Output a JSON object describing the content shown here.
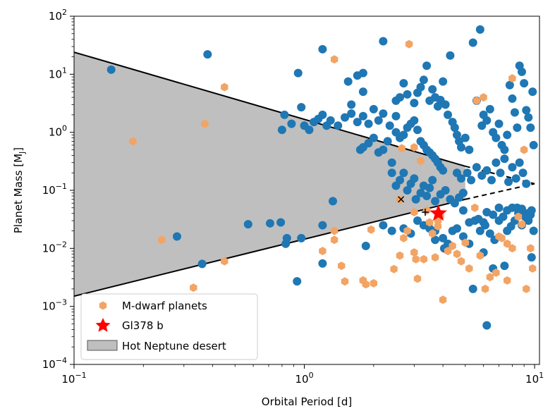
{
  "chart_data": {
    "type": "scatter",
    "xlabel": "Orbital Period [d]",
    "ylabel": "Planet Mass [M",
    "ylabel_sub": "J",
    "ylabel_end": "]",
    "x_scale": "log",
    "y_scale": "log",
    "xlim": [
      0.1,
      10.5
    ],
    "ylim": [
      0.0001,
      100
    ],
    "x_ticks": [
      {
        "value": 0.1,
        "base": "10",
        "exp": "−1"
      },
      {
        "value": 1,
        "base": "10",
        "exp": "0"
      },
      {
        "value": 10,
        "base": "10",
        "exp": "1"
      }
    ],
    "y_ticks": [
      {
        "value": 0.0001,
        "base": "10",
        "exp": "−4"
      },
      {
        "value": 0.001,
        "base": "10",
        "exp": "−3"
      },
      {
        "value": 0.01,
        "base": "10",
        "exp": "−2"
      },
      {
        "value": 0.1,
        "base": "10",
        "exp": "−1"
      },
      {
        "value": 1,
        "base": "10",
        "exp": "0"
      },
      {
        "value": 10,
        "base": "10",
        "exp": "1"
      },
      {
        "value": 100,
        "base": "10",
        "exp": "2"
      }
    ],
    "grid": false,
    "legend_position": "lower-left",
    "colors": {
      "all_planets": "#1f77b4",
      "m_dwarf": "#f2a465",
      "star_marker": "#ff0000",
      "desert_fill": "#bfbfbf",
      "desert_edge": "#000000"
    },
    "legend": [
      {
        "label": "M-dwarf planets",
        "marker": "hexagon",
        "color": "#f2a465"
      },
      {
        "label": "Gl378 b",
        "marker": "star",
        "color": "#ff0000"
      },
      {
        "label": "Hot Neptune desert",
        "marker": "patch",
        "color": "#bfbfbf"
      }
    ],
    "desert": {
      "upper_solid": [
        [
          0.1,
          24
        ],
        [
          5.0,
          0.26
        ]
      ],
      "upper_dashed": [
        [
          5.0,
          0.26
        ],
        [
          10,
          0.13
        ]
      ],
      "lower_solid": [
        [
          0.1,
          0.0015
        ],
        [
          5.0,
          0.07
        ]
      ],
      "lower_dashed": [
        [
          5.0,
          0.07
        ],
        [
          10,
          0.13
        ]
      ]
    },
    "highlight": {
      "name": "Gl378 b",
      "x": 3.82,
      "y": 0.04
    },
    "extra_markers": [
      {
        "symbol": "x",
        "x": 2.63,
        "y": 0.07
      },
      {
        "symbol": "+",
        "x": 3.35,
        "y": 0.042
      }
    ],
    "series": [
      {
        "marker": "circle",
        "color": "#1f77b4",
        "points": [
          [
            0.145,
            12
          ],
          [
            0.38,
            22
          ],
          [
            0.94,
            10.5
          ],
          [
            0.28,
            0.016
          ],
          [
            0.36,
            0.0054
          ],
          [
            0.57,
            0.026
          ],
          [
            0.71,
            0.027
          ],
          [
            0.79,
            0.028
          ],
          [
            0.83,
            0.012
          ],
          [
            0.84,
            0.015
          ],
          [
            0.97,
            0.015
          ],
          [
            0.93,
            0.0027
          ],
          [
            1.2,
            0.025
          ],
          [
            1.2,
            0.0055
          ],
          [
            1.33,
            0.065
          ],
          [
            0.8,
            1.1
          ],
          [
            0.82,
            2.0
          ],
          [
            0.88,
            1.4
          ],
          [
            0.97,
            2.7
          ],
          [
            1.0,
            1.3
          ],
          [
            1.05,
            1.1
          ],
          [
            1.1,
            1.5
          ],
          [
            1.15,
            1.7
          ],
          [
            1.2,
            2.0
          ],
          [
            1.25,
            1.3
          ],
          [
            1.3,
            1.6
          ],
          [
            1.4,
            1.3
          ],
          [
            1.2,
            27
          ],
          [
            1.5,
            1.8
          ],
          [
            1.6,
            2.1
          ],
          [
            1.7,
            1.5
          ],
          [
            1.75,
            0.5
          ],
          [
            1.8,
            0.55
          ],
          [
            1.9,
            0.65
          ],
          [
            2.0,
            0.8
          ],
          [
            1.8,
            1.9
          ],
          [
            1.9,
            1.4
          ],
          [
            1.55,
            7.5
          ],
          [
            1.7,
            9.5
          ],
          [
            1.8,
            10.5
          ],
          [
            1.8,
            5.0
          ],
          [
            1.6,
            3.0
          ],
          [
            2.1,
            0.45
          ],
          [
            2.2,
            0.5
          ],
          [
            2.3,
            0.7
          ],
          [
            2.4,
            0.3
          ],
          [
            2.0,
            2.5
          ],
          [
            2.1,
            1.6
          ],
          [
            2.2,
            2.1
          ],
          [
            2.35,
            1.3
          ],
          [
            2.5,
            1.9
          ],
          [
            2.5,
            1.0
          ],
          [
            2.6,
            0.8
          ],
          [
            2.7,
            0.9
          ],
          [
            2.8,
            1.2
          ],
          [
            2.9,
            1.4
          ],
          [
            3.0,
            1.6
          ],
          [
            3.1,
            1.1
          ],
          [
            3.2,
            0.7
          ],
          [
            3.3,
            0.6
          ],
          [
            3.4,
            0.5
          ],
          [
            3.5,
            0.45
          ],
          [
            3.6,
            0.4
          ],
          [
            3.7,
            0.35
          ],
          [
            3.8,
            0.3
          ],
          [
            3.9,
            0.25
          ],
          [
            4.0,
            0.22
          ],
          [
            2.2,
            37
          ],
          [
            2.5,
            3.5
          ],
          [
            2.6,
            4.0
          ],
          [
            2.7,
            7.0
          ],
          [
            2.8,
            4.5
          ],
          [
            3.0,
            3.2
          ],
          [
            3.1,
            4.8
          ],
          [
            3.2,
            6.0
          ],
          [
            3.3,
            8.0
          ],
          [
            3.4,
            14
          ],
          [
            3.5,
            3.5
          ],
          [
            3.6,
            5.5
          ],
          [
            3.7,
            4.0
          ],
          [
            3.8,
            2.8
          ],
          [
            3.9,
            3.6
          ],
          [
            4.0,
            7.5
          ],
          [
            4.1,
            3.0
          ],
          [
            4.2,
            2.0
          ],
          [
            4.3,
            21
          ],
          [
            4.4,
            1.5
          ],
          [
            4.5,
            1.2
          ],
          [
            4.6,
            0.9
          ],
          [
            4.7,
            0.7
          ],
          [
            4.8,
            0.55
          ],
          [
            5.0,
            0.8
          ],
          [
            5.2,
            0.5
          ],
          [
            5.4,
            35
          ],
          [
            5.6,
            3.5
          ],
          [
            5.8,
            59
          ],
          [
            5.9,
            1.3
          ],
          [
            6.0,
            2.0
          ],
          [
            6.2,
            1.6
          ],
          [
            6.4,
            2.5
          ],
          [
            6.6,
            1.0
          ],
          [
            6.8,
            0.8
          ],
          [
            7.0,
            1.4
          ],
          [
            7.2,
            0.6
          ],
          [
            7.4,
            0.5
          ],
          [
            7.6,
            0.9
          ],
          [
            7.8,
            6.5
          ],
          [
            8.0,
            3.8
          ],
          [
            8.2,
            2.2
          ],
          [
            8.4,
            1.2
          ],
          [
            8.6,
            14
          ],
          [
            8.8,
            11
          ],
          [
            9.0,
            7.0
          ],
          [
            9.2,
            2.4
          ],
          [
            9.4,
            1.8
          ],
          [
            9.6,
            1.2
          ],
          [
            9.8,
            5.0
          ],
          [
            9.9,
            0.6
          ],
          [
            2.4,
            0.2
          ],
          [
            2.5,
            0.12
          ],
          [
            2.6,
            0.15
          ],
          [
            2.7,
            0.2
          ],
          [
            2.8,
            0.1
          ],
          [
            2.9,
            0.13
          ],
          [
            3.0,
            0.16
          ],
          [
            3.05,
            0.07
          ],
          [
            3.2,
            0.09
          ],
          [
            3.3,
            0.12
          ],
          [
            3.4,
            0.08
          ],
          [
            3.5,
            0.11
          ],
          [
            3.6,
            0.15
          ],
          [
            3.7,
            0.065
          ],
          [
            3.9,
            0.085
          ],
          [
            4.1,
            0.1
          ],
          [
            4.3,
            0.07
          ],
          [
            4.5,
            0.06
          ],
          [
            4.7,
            0.075
          ],
          [
            4.9,
            0.09
          ],
          [
            4.6,
            0.2
          ],
          [
            4.8,
            0.16
          ],
          [
            5.1,
            0.2
          ],
          [
            5.3,
            0.15
          ],
          [
            5.6,
            0.25
          ],
          [
            5.9,
            0.18
          ],
          [
            6.2,
            0.22
          ],
          [
            6.5,
            0.15
          ],
          [
            6.8,
            0.3
          ],
          [
            7.1,
            0.2
          ],
          [
            7.4,
            0.35
          ],
          [
            7.7,
            0.14
          ],
          [
            8.0,
            0.25
          ],
          [
            8.3,
            0.16
          ],
          [
            8.6,
            0.3
          ],
          [
            8.9,
            0.2
          ],
          [
            9.2,
            0.13
          ],
          [
            2.2,
            0.025
          ],
          [
            2.4,
            0.02
          ],
          [
            2.7,
            0.022
          ],
          [
            2.9,
            0.018
          ],
          [
            3.1,
            0.03
          ],
          [
            3.3,
            0.025
          ],
          [
            3.5,
            0.022
          ],
          [
            3.7,
            0.02
          ],
          [
            4.0,
            0.015
          ],
          [
            4.2,
            0.012
          ],
          [
            4.4,
            0.02
          ],
          [
            4.6,
            0.022
          ],
          [
            4.9,
            0.016
          ],
          [
            5.2,
            0.028
          ],
          [
            5.5,
            0.03
          ],
          [
            5.8,
            0.02
          ],
          [
            6.1,
            0.025
          ],
          [
            6.4,
            0.018
          ],
          [
            6.7,
            0.014
          ],
          [
            7.0,
            0.03
          ],
          [
            7.3,
            0.035
          ],
          [
            7.6,
            0.02
          ],
          [
            7.9,
            0.024
          ],
          [
            8.2,
            0.03
          ],
          [
            8.5,
            0.04
          ],
          [
            8.8,
            0.025
          ],
          [
            9.1,
            0.035
          ],
          [
            9.4,
            0.03
          ],
          [
            9.7,
            0.045
          ],
          [
            9.9,
            0.02
          ],
          [
            7.6,
            0.045
          ],
          [
            8.0,
            0.05
          ],
          [
            8.4,
            0.05
          ],
          [
            8.8,
            0.048
          ],
          [
            9.2,
            0.04
          ],
          [
            9.6,
            0.038
          ],
          [
            6.2,
            0.042
          ],
          [
            6.6,
            0.038
          ],
          [
            7.0,
            0.05
          ],
          [
            5.4,
            0.002
          ],
          [
            6.2,
            0.00047
          ],
          [
            6.6,
            0.0045
          ],
          [
            7.4,
            0.005
          ],
          [
            9.7,
            0.007
          ],
          [
            5.7,
            0.032
          ],
          [
            6.0,
            0.028
          ],
          [
            4.9,
            0.045
          ],
          [
            1.85,
            0.011
          ],
          [
            4.05,
            0.01
          ],
          [
            3.7,
            0.014
          ],
          [
            5.2,
            0.012
          ],
          [
            6.0,
            0.0085
          ]
        ]
      },
      {
        "name": "M-dwarf planets",
        "marker": "hexagon",
        "color": "#f2a465",
        "points": [
          [
            0.18,
            0.7
          ],
          [
            0.37,
            1.4
          ],
          [
            0.45,
            6.0
          ],
          [
            0.24,
            0.014
          ],
          [
            0.45,
            0.006
          ],
          [
            0.33,
            0.0021
          ],
          [
            1.35,
            18
          ],
          [
            2.85,
            33
          ],
          [
            2.65,
            0.53
          ],
          [
            3.0,
            0.55
          ],
          [
            3.2,
            0.32
          ],
          [
            2.6,
            0.069
          ],
          [
            3.0,
            0.042
          ],
          [
            1.2,
            0.009
          ],
          [
            1.35,
            0.014
          ],
          [
            1.35,
            0.02
          ],
          [
            1.45,
            0.005
          ],
          [
            1.5,
            0.0027
          ],
          [
            1.8,
            0.0028
          ],
          [
            1.8,
            0.0028
          ],
          [
            1.85,
            0.0024
          ],
          [
            1.95,
            0.021
          ],
          [
            2.0,
            0.0025
          ],
          [
            2.45,
            0.0044
          ],
          [
            2.6,
            0.0075
          ],
          [
            2.7,
            0.015
          ],
          [
            2.8,
            0.02
          ],
          [
            3.0,
            0.0085
          ],
          [
            3.05,
            0.0065
          ],
          [
            3.1,
            0.003
          ],
          [
            3.3,
            0.0065
          ],
          [
            3.5,
            0.028
          ],
          [
            3.6,
            0.018
          ],
          [
            3.7,
            0.007
          ],
          [
            3.8,
            0.03
          ],
          [
            3.9,
            0.036
          ],
          [
            4.0,
            0.0013
          ],
          [
            4.2,
            0.009
          ],
          [
            4.4,
            0.011
          ],
          [
            4.6,
            0.008
          ],
          [
            4.8,
            0.006
          ],
          [
            5.0,
            0.0125
          ],
          [
            5.2,
            0.0045
          ],
          [
            5.5,
            0.05
          ],
          [
            5.8,
            0.0075
          ],
          [
            6.1,
            0.002
          ],
          [
            6.4,
            0.0032
          ],
          [
            6.8,
            0.0038
          ],
          [
            7.2,
            0.015
          ],
          [
            7.6,
            0.0028
          ],
          [
            8.0,
            0.01
          ],
          [
            8.5,
            0.035
          ],
          [
            8.8,
            0.026
          ],
          [
            9.2,
            0.002
          ],
          [
            9.6,
            0.01
          ],
          [
            9.8,
            0.0045
          ],
          [
            5.6,
            3.5
          ],
          [
            6.0,
            4.0
          ],
          [
            8.0,
            8.5
          ],
          [
            9.0,
            0.5
          ],
          [
            3.4,
            0.045
          ],
          [
            3.8,
            0.024
          ],
          [
            7.0,
            0.016
          ],
          [
            7.6,
            0.012
          ]
        ]
      }
    ]
  }
}
